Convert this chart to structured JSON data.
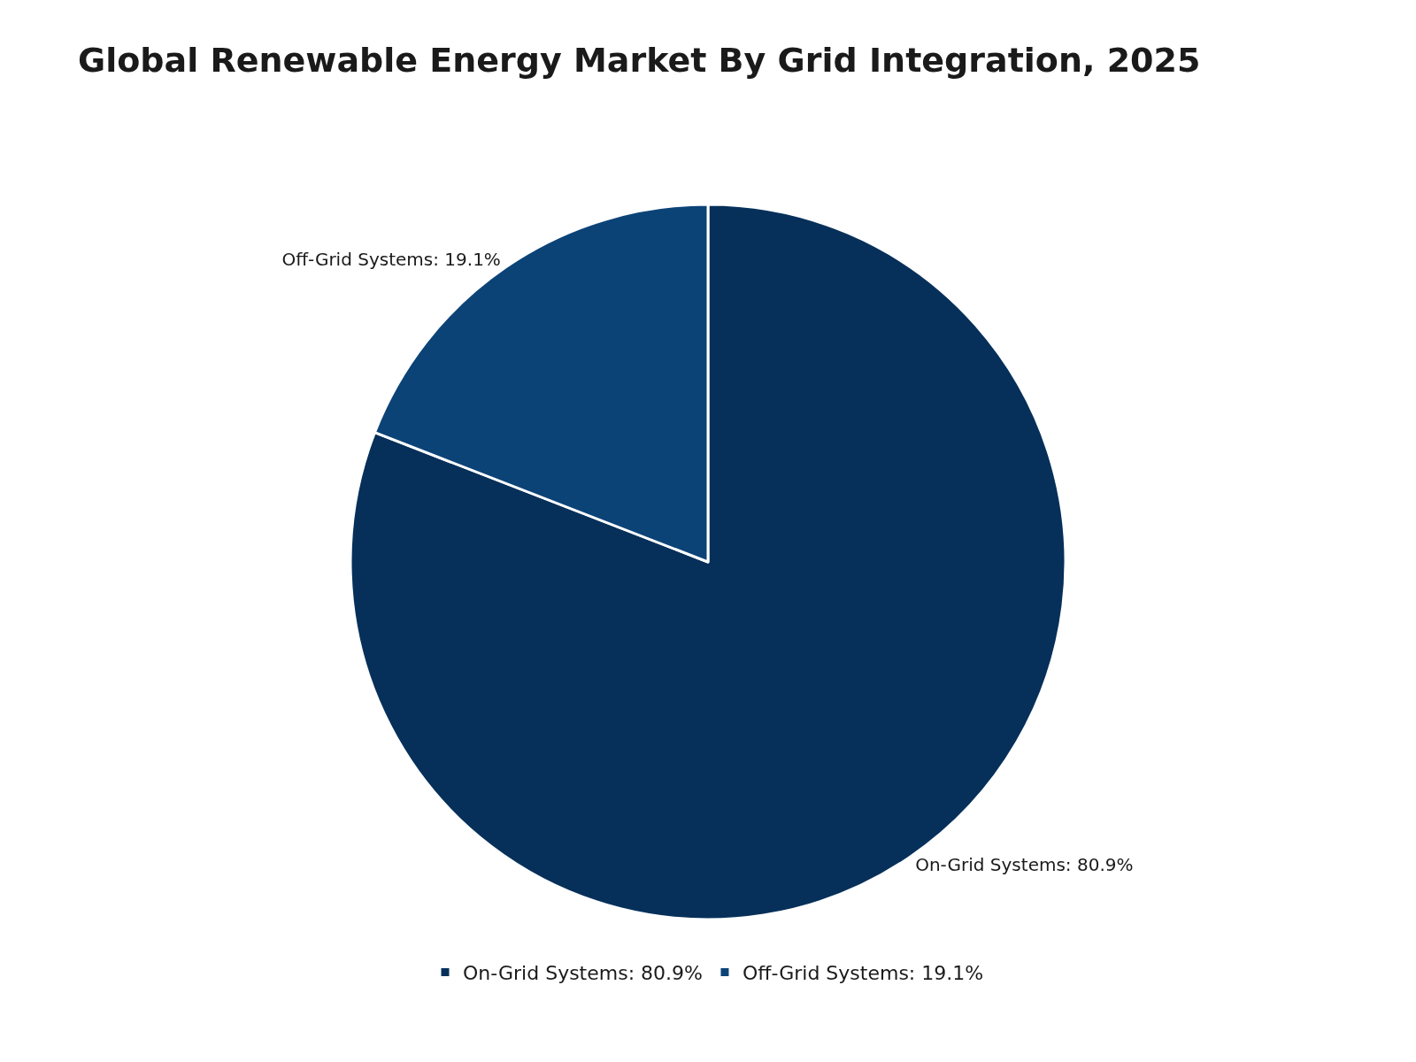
{
  "chart_data": {
    "type": "pie",
    "title": "Global Renewable Energy Market By Grid Integration, 2025",
    "categories": [
      "On-Grid Systems: 80.9%",
      "Off-Grid Systems: 19.1%"
    ],
    "values": [
      80.9,
      19.1
    ],
    "colors": [
      "#06305a",
      "#0b4377"
    ],
    "legend": "bottom"
  }
}
